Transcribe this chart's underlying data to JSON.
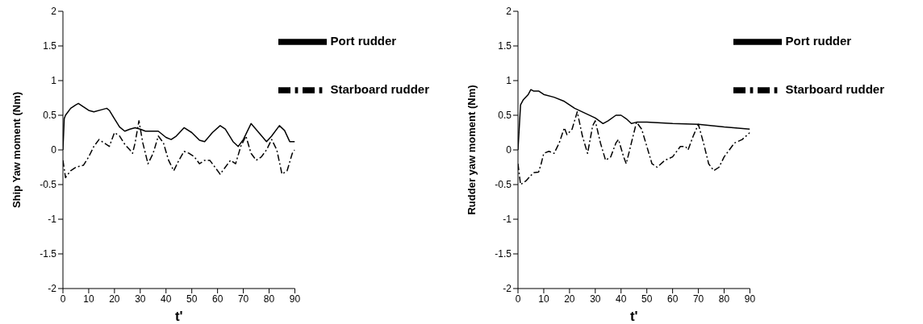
{
  "chart_data": [
    {
      "type": "line",
      "xlabel": "t'",
      "ylabel": "Ship Yaw moment (Nm)",
      "xlim": [
        0,
        90
      ],
      "ylim": [
        -2,
        2
      ],
      "xticks": [
        0,
        10,
        20,
        30,
        40,
        50,
        60,
        70,
        80,
        90
      ],
      "yticks": [
        -2,
        -1.5,
        -1,
        -0.5,
        0,
        0.5,
        1,
        1.5,
        2
      ],
      "grid": false,
      "legend": "top right",
      "marker": "none",
      "series": [
        {
          "name": "Port rudder",
          "color": "#000000",
          "line_style": "solid",
          "x": [
            0,
            0.5,
            1,
            3,
            5,
            6,
            8,
            10,
            12,
            15,
            17,
            18,
            20,
            22,
            24,
            26,
            28,
            30,
            32,
            35,
            37,
            40,
            42,
            44,
            47,
            50,
            53,
            55,
            58,
            61,
            63,
            66,
            68,
            70,
            73,
            76,
            79,
            81,
            84,
            86,
            88,
            90
          ],
          "values": [
            0,
            0.45,
            0.5,
            0.6,
            0.65,
            0.67,
            0.62,
            0.57,
            0.55,
            0.58,
            0.6,
            0.57,
            0.45,
            0.33,
            0.27,
            0.3,
            0.32,
            0.3,
            0.27,
            0.27,
            0.27,
            0.18,
            0.15,
            0.2,
            0.32,
            0.25,
            0.14,
            0.12,
            0.25,
            0.35,
            0.3,
            0.12,
            0.05,
            0.15,
            0.38,
            0.25,
            0.12,
            0.2,
            0.35,
            0.28,
            0.12,
            0.12
          ]
        },
        {
          "name": "Starboard rudder",
          "color": "#000000",
          "line_style": "dashed",
          "x": [
            0,
            1,
            3,
            5,
            8,
            10,
            12,
            14,
            16,
            18,
            20,
            22,
            24,
            26,
            27,
            28,
            29.5,
            31,
            33,
            35,
            37,
            39,
            41,
            43,
            45,
            47,
            49,
            51,
            53,
            55,
            57,
            59,
            61,
            63,
            65,
            67,
            69,
            71,
            73,
            75,
            77,
            79,
            81,
            83,
            85,
            87,
            89,
            90
          ],
          "values": [
            -0.15,
            -0.4,
            -0.3,
            -0.25,
            -0.22,
            -0.1,
            0.05,
            0.15,
            0.1,
            0.05,
            0.25,
            0.2,
            0.08,
            0,
            -0.05,
            0.1,
            0.42,
            0.1,
            -0.2,
            -0.05,
            0.2,
            0.1,
            -0.15,
            -0.3,
            -0.15,
            -0.02,
            -0.05,
            -0.1,
            -0.2,
            -0.15,
            -0.15,
            -0.25,
            -0.35,
            -0.25,
            -0.15,
            -0.2,
            0.05,
            0.2,
            -0.05,
            -0.15,
            -0.1,
            0,
            0.15,
            0,
            -0.35,
            -0.3,
            -0.05,
            0
          ]
        }
      ]
    },
    {
      "type": "line",
      "xlabel": "t'",
      "ylabel": "Rudder yaw moment (Nm)",
      "xlim": [
        0,
        90
      ],
      "ylim": [
        -2,
        2
      ],
      "xticks": [
        0,
        10,
        20,
        30,
        40,
        50,
        60,
        70,
        80,
        90
      ],
      "yticks": [
        -2,
        -1.5,
        -1,
        -0.5,
        0,
        0.5,
        1,
        1.5,
        2
      ],
      "grid": false,
      "legend": "top right",
      "marker": "none",
      "series": [
        {
          "name": "Port rudder",
          "color": "#000000",
          "line_style": "solid",
          "x": [
            0,
            1,
            2,
            4,
            5,
            6,
            8,
            10,
            14,
            18,
            22,
            26,
            30,
            33,
            35,
            38,
            40,
            42,
            44,
            46,
            50,
            60,
            70,
            80,
            90
          ],
          "values": [
            0,
            0.65,
            0.72,
            0.8,
            0.87,
            0.85,
            0.85,
            0.8,
            0.76,
            0.7,
            0.6,
            0.53,
            0.46,
            0.38,
            0.42,
            0.5,
            0.5,
            0.45,
            0.38,
            0.4,
            0.4,
            0.38,
            0.37,
            0.33,
            0.3
          ]
        },
        {
          "name": "Starboard rudder",
          "color": "#000000",
          "line_style": "dashed",
          "x": [
            0,
            1,
            3,
            6,
            8,
            9,
            10,
            12,
            14,
            16,
            18,
            19,
            21,
            23,
            25,
            27,
            29,
            30,
            32,
            34,
            36,
            38,
            39,
            41,
            42,
            44,
            46,
            48,
            50,
            52,
            54,
            57,
            60,
            63,
            65,
            66,
            68,
            70,
            72,
            74,
            76,
            78,
            80,
            84,
            87,
            90
          ],
          "values": [
            -0.2,
            -0.5,
            -0.45,
            -0.33,
            -0.32,
            -0.2,
            -0.05,
            -0.02,
            -0.05,
            0.1,
            0.32,
            0.22,
            0.3,
            0.55,
            0.2,
            -0.05,
            0.35,
            0.42,
            0.1,
            -0.15,
            -0.1,
            0.1,
            0.15,
            -0.1,
            -0.2,
            0.1,
            0.4,
            0.3,
            0.05,
            -0.2,
            -0.25,
            -0.15,
            -0.1,
            0.05,
            0.05,
            0,
            0.2,
            0.37,
            0.1,
            -0.2,
            -0.3,
            -0.25,
            -0.1,
            0.1,
            0.15,
            0.25
          ]
        }
      ]
    }
  ]
}
